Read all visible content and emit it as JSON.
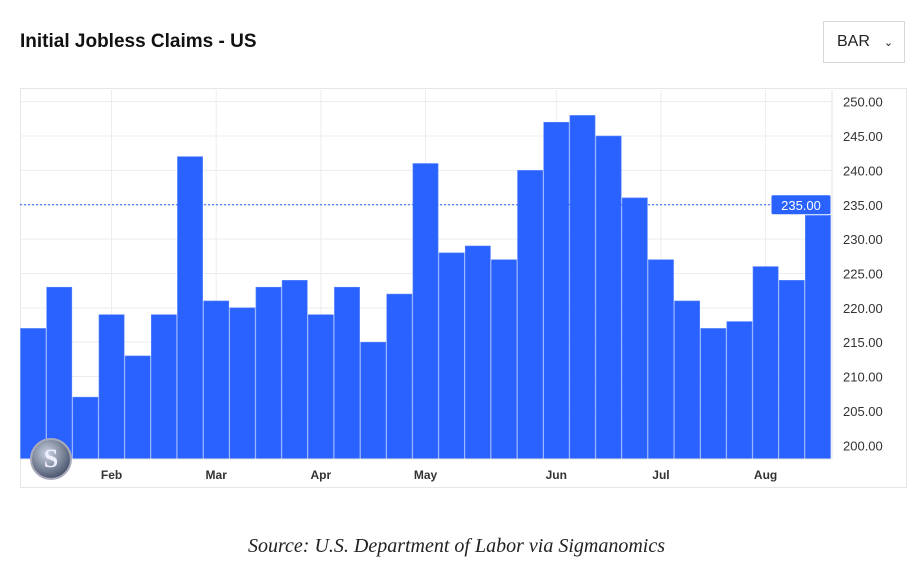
{
  "header": {
    "title": "Initial Jobless Claims - US",
    "chart_type_button": "BAR",
    "chevron_icon": "chevron-down-icon"
  },
  "source": "Source: U.S. Department of Labor via Sigmanomics",
  "logo": {
    "text": "S"
  },
  "chart_data": {
    "type": "bar",
    "title": "Initial Jobless Claims - US",
    "values": [
      217,
      223,
      207,
      219,
      213,
      219,
      242,
      221,
      220,
      223,
      224,
      219,
      223,
      215,
      222,
      241,
      228,
      229,
      227,
      240,
      247,
      248,
      245,
      236,
      227,
      221,
      217,
      218,
      226,
      224,
      235
    ],
    "month_labels": [
      {
        "label": "Feb",
        "bar_index": 3
      },
      {
        "label": "Mar",
        "bar_index": 7
      },
      {
        "label": "Apr",
        "bar_index": 11
      },
      {
        "label": "May",
        "bar_index": 15
      },
      {
        "label": "Jun",
        "bar_index": 20
      },
      {
        "label": "Jul",
        "bar_index": 24
      },
      {
        "label": "Aug",
        "bar_index": 28
      }
    ],
    "y_ticks": [
      "200.00",
      "205.00",
      "210.00",
      "215.00",
      "220.00",
      "225.00",
      "230.00",
      "235.00",
      "240.00",
      "245.00",
      "250.00"
    ],
    "ylim": [
      198,
      251.7
    ],
    "y_axis_side": "right",
    "last_value_label": "235.00",
    "last_value": 235,
    "grid": true,
    "bar_color": "#2962ff",
    "legend": "none"
  }
}
